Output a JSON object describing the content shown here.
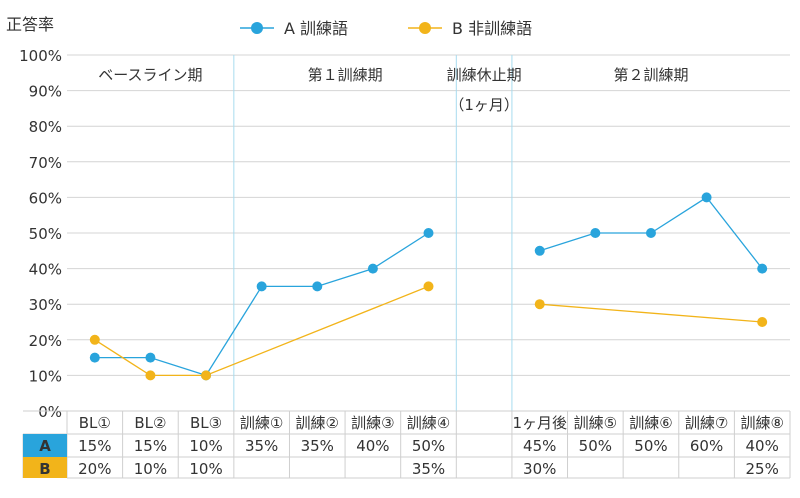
{
  "chart_data": {
    "type": "line",
    "ylabel": "正答率",
    "ylim": [
      0,
      100
    ],
    "yticks": [
      "0%",
      "10%",
      "20%",
      "30%",
      "40%",
      "50%",
      "60%",
      "70%",
      "80%",
      "90%",
      "100%"
    ],
    "grid": true,
    "legend_position": "top",
    "categories": [
      "BL①",
      "BL②",
      "BL③",
      "訓練①",
      "訓練②",
      "訓練③",
      "訓練④",
      "",
      "1ヶ月後",
      "訓練⑤",
      "訓練⑥",
      "訓練⑦",
      "訓練⑧"
    ],
    "phases": [
      {
        "label": "ベースライン期",
        "sub": ""
      },
      {
        "label": "第１訓練期",
        "sub": ""
      },
      {
        "label": "訓練休止期",
        "sub": "（1ヶ月）"
      },
      {
        "label": "第２訓練期",
        "sub": ""
      }
    ],
    "series": [
      {
        "name": "A 訓練語",
        "row_label": "A",
        "color": "#29a4dc",
        "values": [
          15,
          15,
          10,
          35,
          35,
          40,
          50,
          null,
          45,
          50,
          50,
          60,
          40
        ],
        "labels": [
          "15%",
          "15%",
          "10%",
          "35%",
          "35%",
          "40%",
          "50%",
          "",
          "45%",
          "50%",
          "50%",
          "60%",
          "40%"
        ]
      },
      {
        "name": "B 非訓練語",
        "row_label": "B",
        "color": "#f2b41a",
        "values": [
          20,
          10,
          10,
          null,
          null,
          null,
          35,
          null,
          30,
          null,
          null,
          null,
          25
        ],
        "labels": [
          "20%",
          "10%",
          "10%",
          "",
          "",
          "",
          "35%",
          "",
          "30%",
          "",
          "",
          "",
          "25%"
        ]
      }
    ]
  }
}
